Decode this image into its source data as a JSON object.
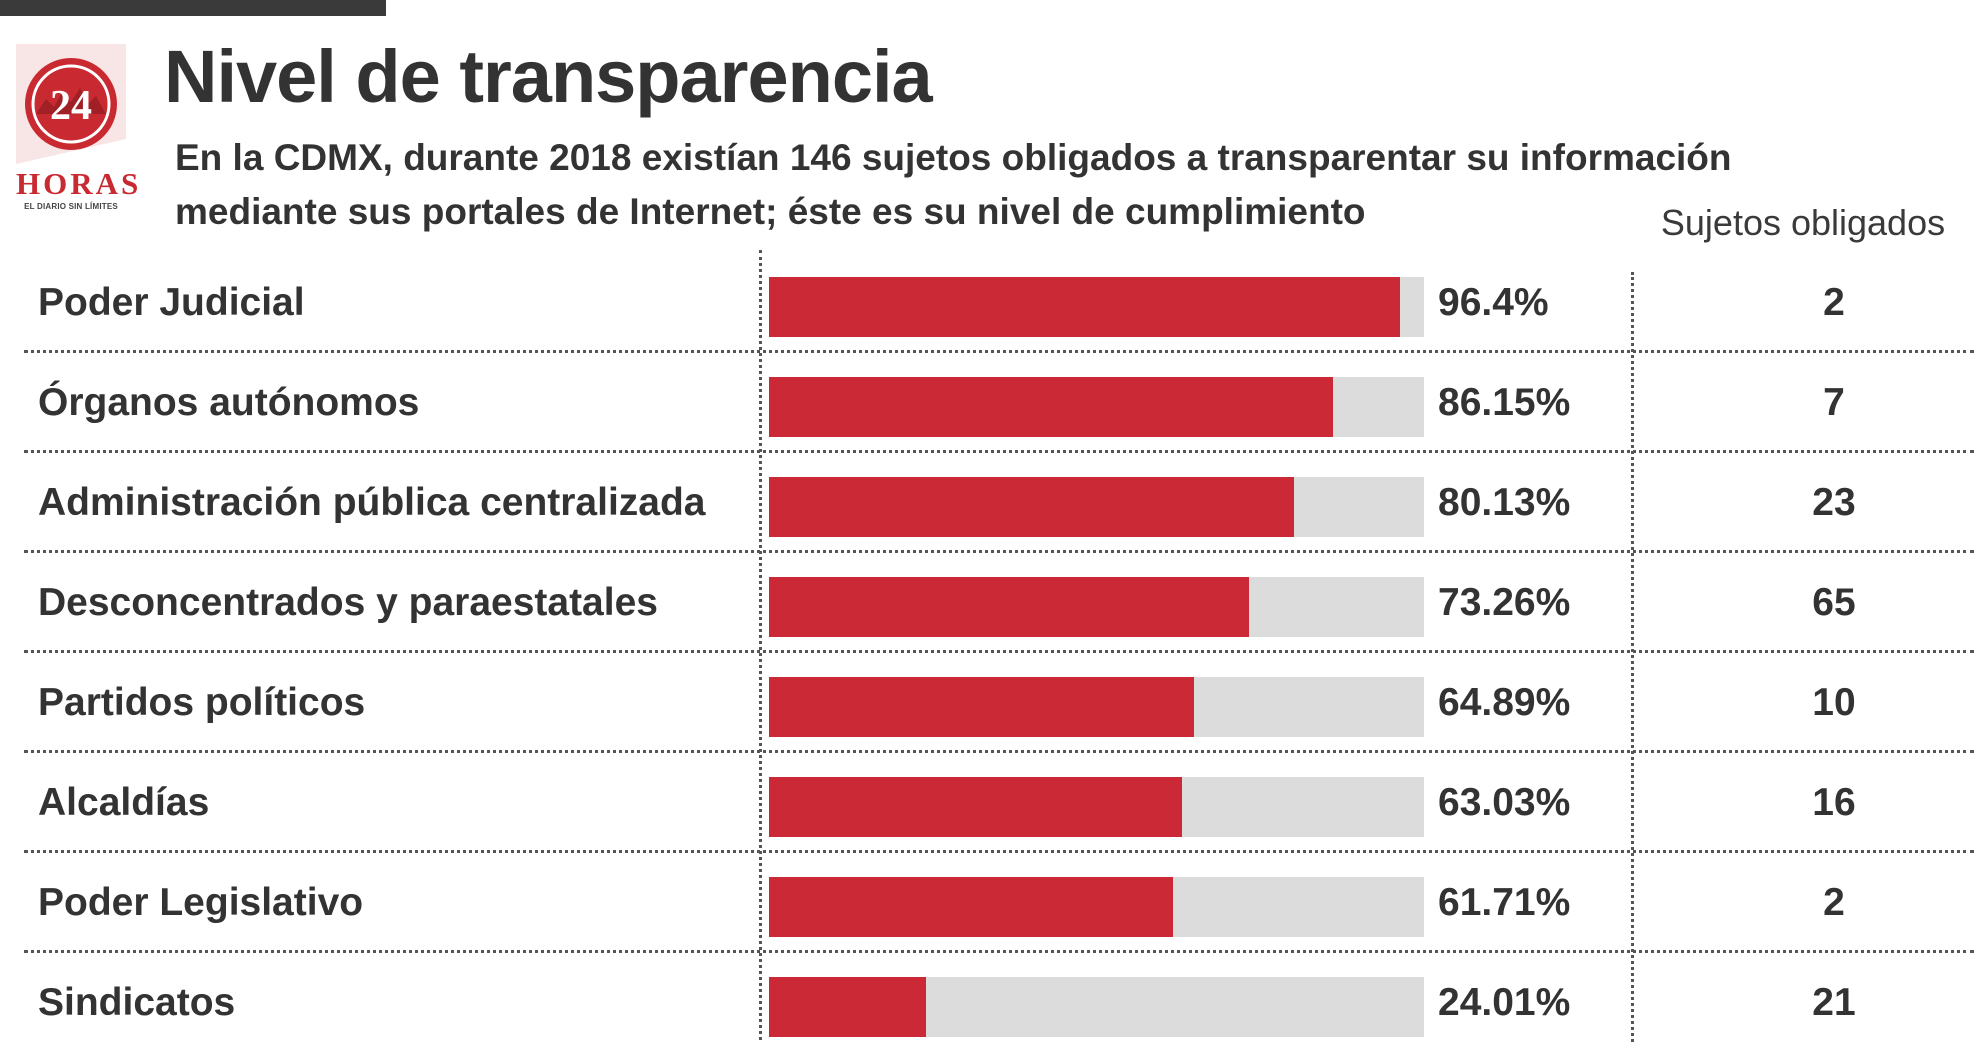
{
  "title": "Nivel de transparencia",
  "subtitle": "En la CDMX, durante 2018 existían 146 sujetos obligados a transparentar su información mediante sus portales de Internet; éste es su nivel de cumplimiento",
  "logo": {
    "number": "24",
    "word": "HORAS",
    "tagline": "EL DIARIO SIN LÍMITES",
    "color": "#c92a31"
  },
  "colors": {
    "bar_fill": "#cc2936",
    "bar_track": "#dcdcdc",
    "text": "#333333"
  },
  "count_header": "Sujetos obligados",
  "chart_data": {
    "type": "bar",
    "orientation": "horizontal",
    "categories": [
      "Poder Judicial",
      "Órganos autónomos",
      "Administración pública centralizada",
      "Desconcentrados y paraestatales",
      "Partidos políticos",
      "Alcaldías",
      "Poder Legislativo",
      "Sindicatos"
    ],
    "values": [
      96.4,
      86.15,
      80.13,
      73.26,
      64.89,
      63.03,
      61.71,
      24.01
    ],
    "value_labels": [
      "96.4%",
      "86.15%",
      "80.13%",
      "73.26%",
      "64.89%",
      "63.03%",
      "61.71%",
      "24.01%"
    ],
    "counts": [
      "2",
      "7",
      "23",
      "65",
      "10",
      "16",
      "2",
      "21"
    ],
    "xlim": [
      0,
      100
    ],
    "grid": false
  }
}
